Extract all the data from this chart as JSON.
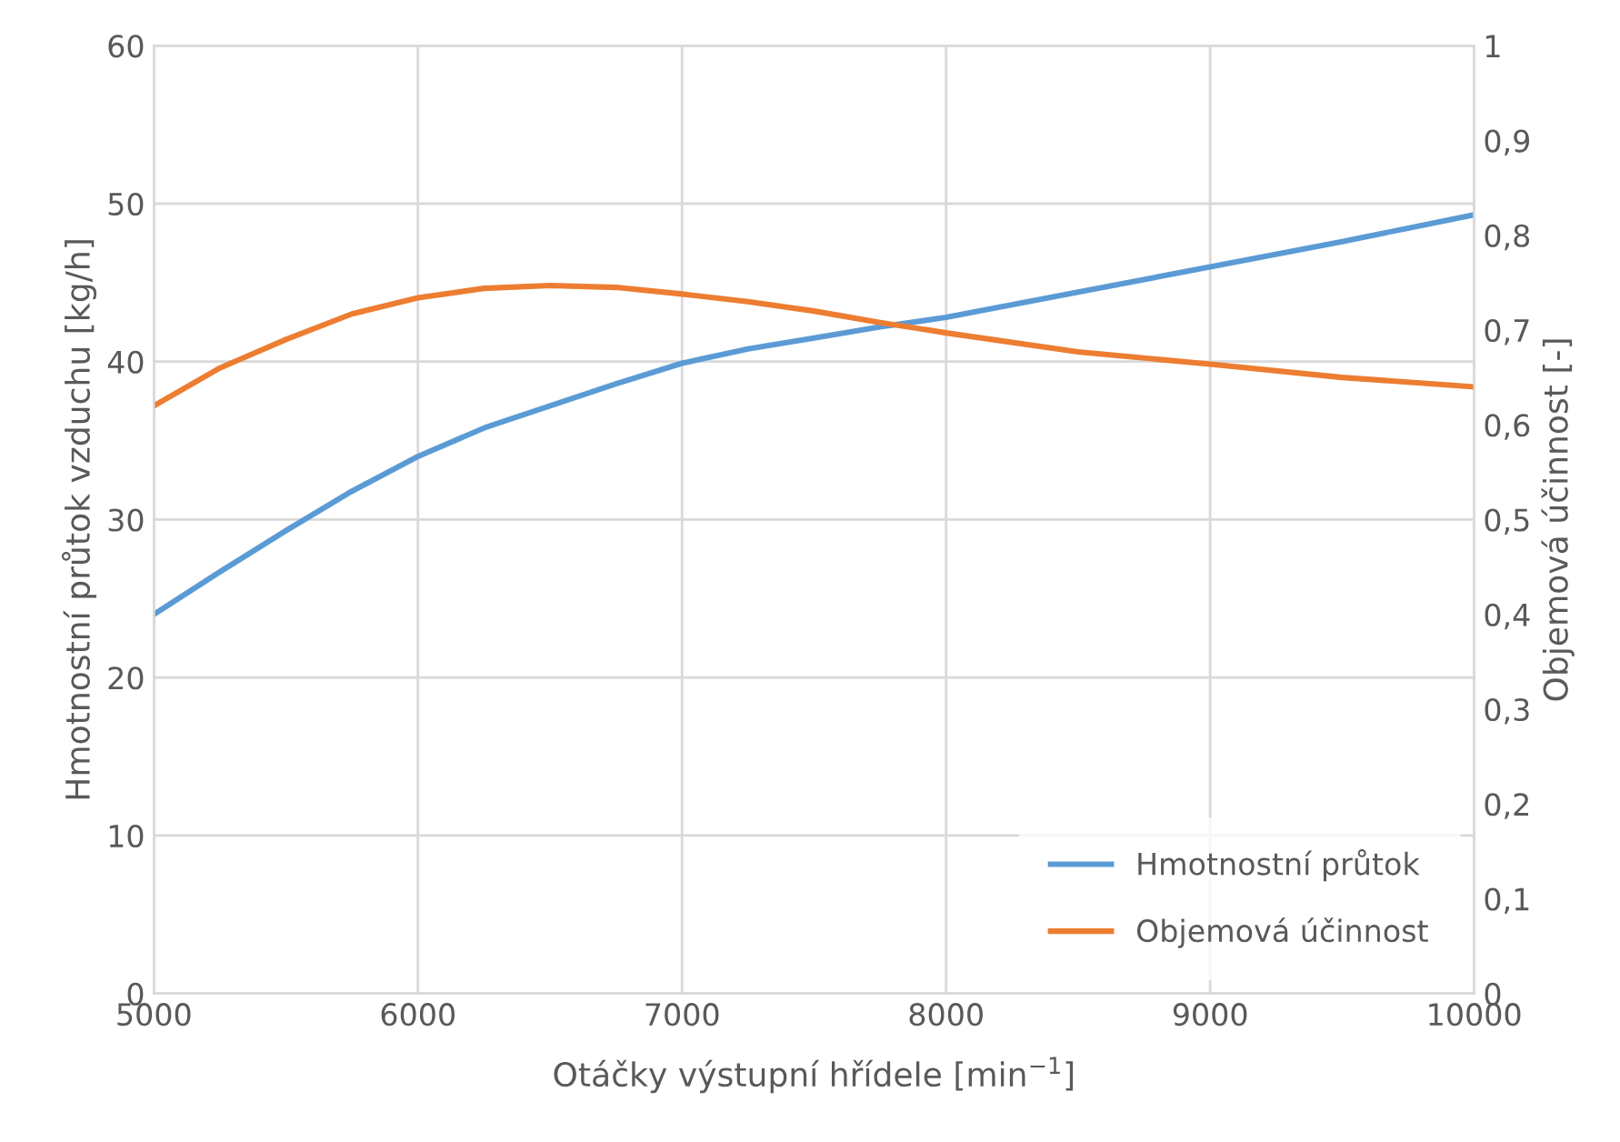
{
  "chart_data": {
    "type": "line",
    "xlabel": "Otáčky výstupní hřídele [min$^{−1}$]",
    "ylabel": "Hmotnostní průtok vzduchu [kg/h]",
    "y2label": "Objemová účinnost [-]",
    "x": [
      5000,
      5250,
      5500,
      5750,
      6000,
      6250,
      6500,
      6750,
      7000,
      7250,
      7500,
      7750,
      8000,
      8500,
      9000,
      9500,
      10000
    ],
    "series": [
      {
        "name": "Hmotnostní průtok",
        "color": "#5b9bd5",
        "values": [
          24,
          26.7,
          29.3,
          31.8,
          34,
          35.8,
          37.2,
          38.6,
          39.9,
          40.8,
          41.5,
          42.2,
          42.8,
          44.4,
          46,
          47.6,
          49.3
        ]
      },
      {
        "name": "Objemová účinnost",
        "color": "#ed7d31",
        "axis": "y2",
        "values": [
          0.62,
          0.66,
          0.69,
          0.717,
          0.734,
          0.744,
          0.747,
          0.745,
          0.738,
          0.73,
          0.72,
          0.708,
          0.697,
          0.677,
          0.664,
          0.65,
          0.64
        ]
      }
    ],
    "xlim": [
      5000,
      10000
    ],
    "xticks": [
      5000,
      6000,
      7000,
      8000,
      9000,
      10000
    ],
    "ylim": [
      0,
      60
    ],
    "yticks": [
      0,
      10,
      20,
      30,
      40,
      50,
      60
    ],
    "y2lim": [
      0,
      1
    ],
    "y2ticks": [
      0,
      {
        "value": 0.1,
        "label": "0,1"
      },
      {
        "value": 0.2,
        "label": "0,2"
      },
      {
        "value": 0.3,
        "label": "0,3"
      },
      {
        "value": 0.4,
        "label": "0,4"
      },
      {
        "value": 0.5,
        "label": "0,5"
      },
      {
        "value": 0.6,
        "label": "0,6"
      },
      {
        "value": 0.7,
        "label": "0,7"
      },
      {
        "value": 0.8,
        "label": "0,8"
      },
      {
        "value": 0.9,
        "label": "0,9"
      },
      1
    ],
    "grid": true,
    "legend": "bottom right",
    "marker": "none",
    "line_style": "solid"
  }
}
